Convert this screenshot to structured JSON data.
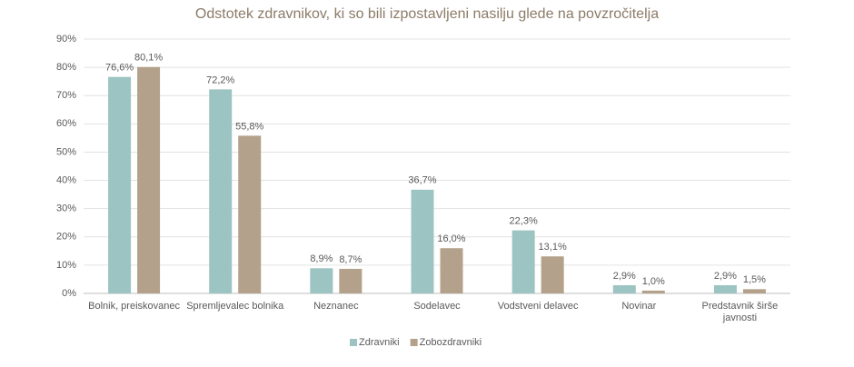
{
  "chart_data": {
    "type": "bar",
    "title": "Odstotek zdravnikov, ki so bili izpostavljeni nasilju glede na povzročitelja",
    "categories": [
      "Bolnik, preiskovanec",
      "Spremljevalec bolnika",
      "Neznanec",
      "Sodelavec",
      "Vodstveni delavec",
      "Novinar",
      "Predstavnik širše javnosti"
    ],
    "series": [
      {
        "name": "Zdravniki",
        "color": "#9cc4c2",
        "values": [
          76.6,
          72.2,
          8.9,
          36.7,
          22.3,
          2.9,
          2.9
        ],
        "value_labels": [
          "76,6%",
          "72,2%",
          "8,9%",
          "36,7%",
          "22,3%",
          "2,9%",
          "2,9%"
        ]
      },
      {
        "name": "Zobozdravniki",
        "color": "#b3a18b",
        "values": [
          80.1,
          55.8,
          8.7,
          16.0,
          13.1,
          1.0,
          1.5
        ],
        "value_labels": [
          "80,1%",
          "55,8%",
          "8,7%",
          "16,0%",
          "13,1%",
          "1,0%",
          "1,5%"
        ]
      }
    ],
    "ylim": [
      0,
      90
    ],
    "yticks": [
      {
        "value": 0,
        "label": "0%"
      },
      {
        "value": 10,
        "label": "10%"
      },
      {
        "value": 20,
        "label": "20%"
      },
      {
        "value": 30,
        "label": "30%"
      },
      {
        "value": 40,
        "label": "40%"
      },
      {
        "value": 50,
        "label": "50%"
      },
      {
        "value": 60,
        "label": "60%"
      },
      {
        "value": 70,
        "label": "70%"
      },
      {
        "value": 80,
        "label": "80%"
      },
      {
        "value": 90,
        "label": "90%"
      }
    ],
    "grid": true,
    "legend": "bottom"
  }
}
